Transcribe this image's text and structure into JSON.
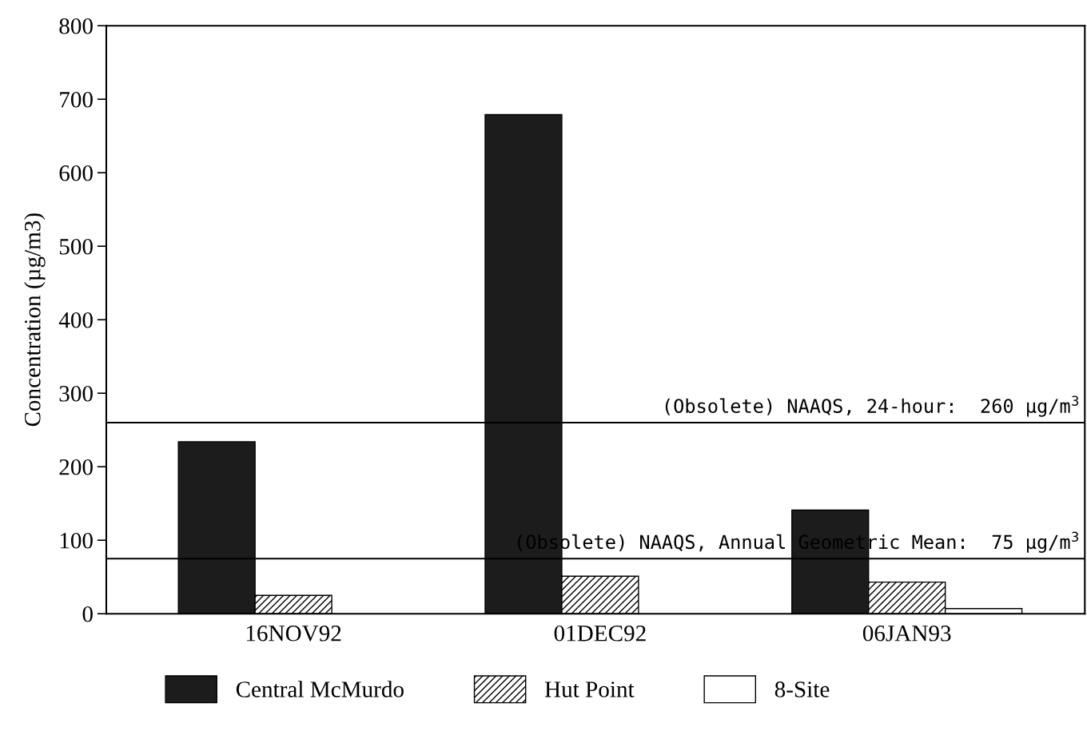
{
  "chart_data": {
    "type": "bar",
    "ylabel": "Concentration (µg/m3)",
    "categories": [
      "16NOV92",
      "01DEC92",
      "06JAN93"
    ],
    "series": [
      {
        "name": "Central McMurdo",
        "color": "#1c1c1c",
        "values": [
          234,
          679,
          141
        ]
      },
      {
        "name": "Hut Point",
        "color": "#000000",
        "values": [
          25,
          51,
          43
        ]
      },
      {
        "name": "8-Site",
        "color": "#ffffff",
        "values": [
          null,
          null,
          7
        ]
      }
    ],
    "ylim": [
      0,
      800
    ],
    "yticks": [
      0,
      100,
      200,
      300,
      400,
      500,
      600,
      700,
      800
    ],
    "ref_lines": [
      {
        "axis": "y",
        "value": 260,
        "label": "(Obsolete) NAAQS, 24-hour:  260 µg/m$^{3}$",
        "color": "#000000"
      },
      {
        "axis": "y",
        "value": 75,
        "label": "(Obsolete) NAAQS, Annual Geometric Mean:  75 µg/m$^{3}$",
        "color": "#000000"
      }
    ],
    "grid": false,
    "legend": "bottom"
  }
}
